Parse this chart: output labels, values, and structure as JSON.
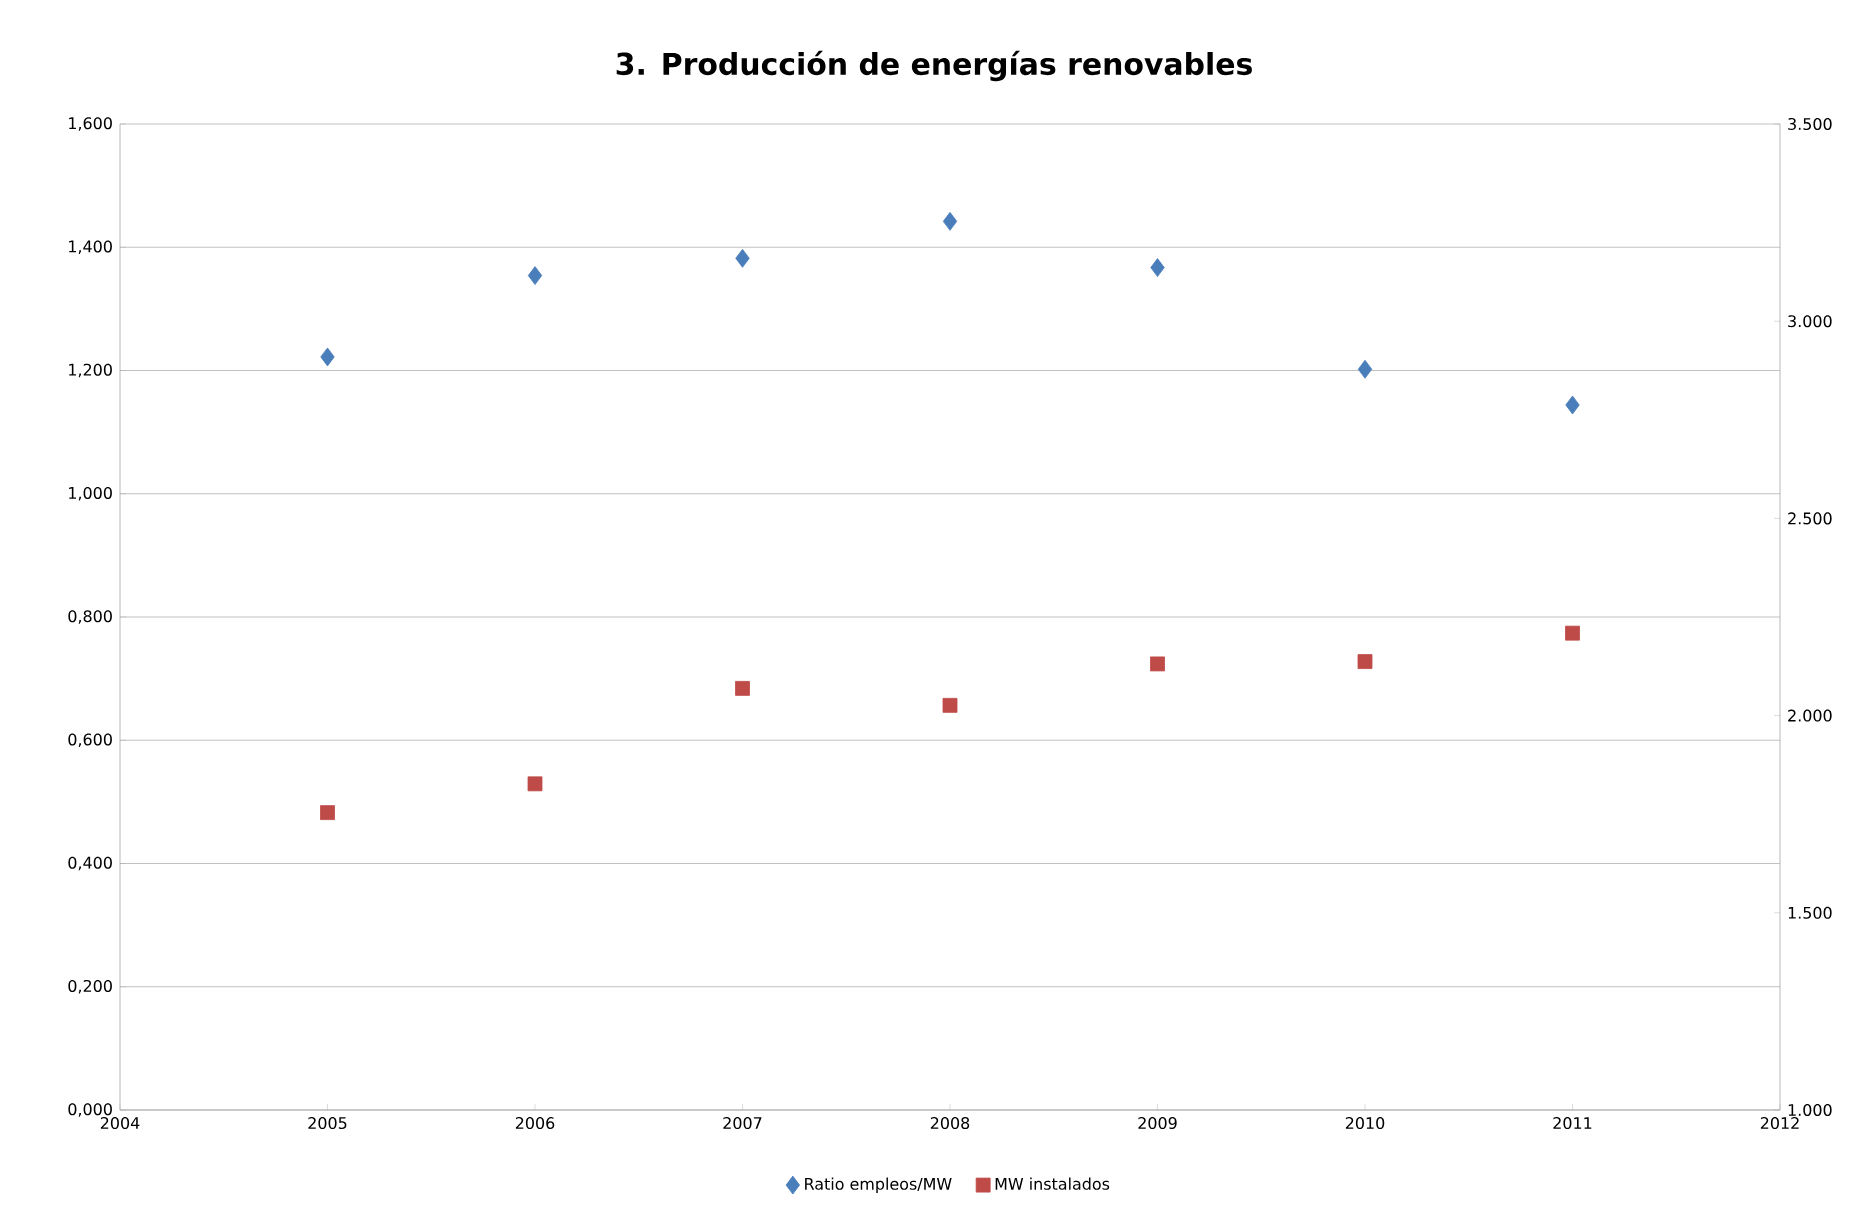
{
  "chart_data": {
    "type": "scatter",
    "title": "3. Producción de energías renovables",
    "x": [
      2005,
      2006,
      2007,
      2008,
      2009,
      2010,
      2011
    ],
    "series": [
      {
        "name": "Ratio empleos/MW",
        "color": "#4a7ebb",
        "marker": "diamond",
        "axis": "y",
        "values": [
          1.222,
          1.354,
          1.382,
          1.442,
          1.367,
          1.202,
          1.144
        ]
      },
      {
        "name": "MW instalados",
        "color": "#be4b48",
        "marker": "square",
        "axis": "y2",
        "values": [
          1754,
          1827,
          2069,
          2026,
          2131,
          2137,
          2209
        ]
      }
    ],
    "xlim": [
      2004,
      2012
    ],
    "xticks": [
      2004,
      2005,
      2006,
      2007,
      2008,
      2009,
      2010,
      2011,
      2012
    ],
    "ylim": [
      0,
      1.6
    ],
    "yticks": [
      {
        "value": 0,
        "label": "0,000"
      },
      {
        "value": 0.2,
        "label": "0,200"
      },
      {
        "value": 0.4,
        "label": "0,400"
      },
      {
        "value": 0.6,
        "label": "0,600"
      },
      {
        "value": 0.8,
        "label": "0,800"
      },
      {
        "value": 1.0,
        "label": "1,000"
      },
      {
        "value": 1.2,
        "label": "1,200"
      },
      {
        "value": 1.4,
        "label": "1,400"
      },
      {
        "value": 1.6,
        "label": "1,600"
      }
    ],
    "y2lim": [
      1000,
      3500
    ],
    "y2ticks": [
      {
        "value": 1000,
        "label": "1.000"
      },
      {
        "value": 1500,
        "label": "1.500"
      },
      {
        "value": 2000,
        "label": "2.000"
      },
      {
        "value": 2500,
        "label": "2.500"
      },
      {
        "value": 3000,
        "label": "3.000"
      },
      {
        "value": 3500,
        "label": "3.500"
      }
    ],
    "grid": "y",
    "legend": "bottom"
  }
}
